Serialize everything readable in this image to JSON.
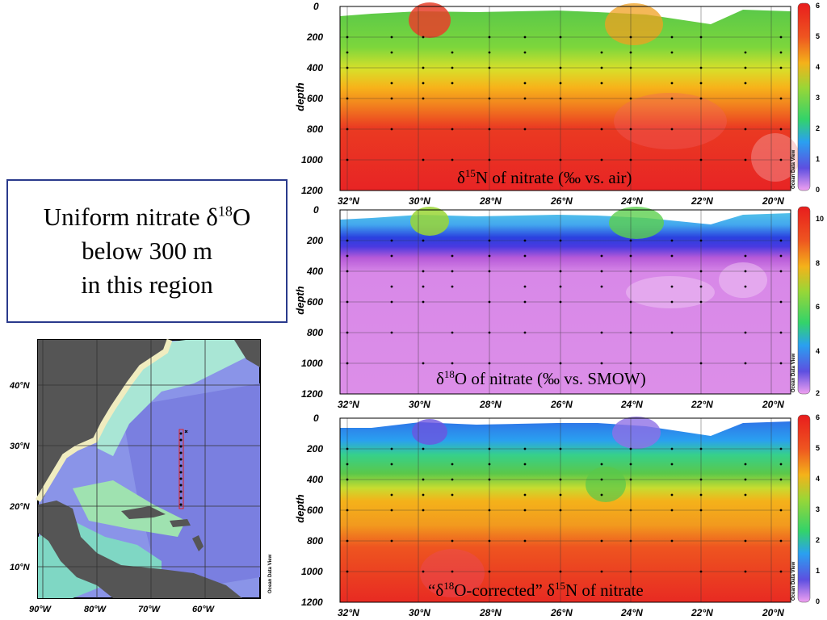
{
  "callout": {
    "line1_pre": "Uniform nitrate δ",
    "line1_sup": "18",
    "line1_post": "O",
    "line2": "below 300 m",
    "line3": "in this region"
  },
  "map": {
    "lat_labels": [
      "40°N",
      "30°N",
      "20°N",
      "10°N"
    ],
    "lon_labels": [
      "90°W",
      "80°W",
      "70°W",
      "60°W"
    ],
    "watermark": "Ocean Data View"
  },
  "chart_data": [
    {
      "type": "heatmap",
      "title_parts": {
        "pre": "δ",
        "sup": "15",
        "post": "N of nitrate (‰ vs. air)"
      },
      "ylabel": "depth",
      "x_ticks": [
        "32°N",
        "30°N",
        "28°N",
        "26°N",
        "24°N",
        "22°N",
        "20°N"
      ],
      "y_ticks": [
        "0",
        "200",
        "400",
        "600",
        "800",
        "1000",
        "1200"
      ],
      "ylim": [
        1200,
        0
      ],
      "colorbar": {
        "ticks": [
          "6",
          "5",
          "4",
          "3",
          "2",
          "1",
          "0"
        ],
        "range": [
          0,
          6
        ]
      },
      "watermark": "Ocean Data View",
      "grid": true
    },
    {
      "type": "heatmap",
      "title_parts": {
        "pre": "δ",
        "sup": "18",
        "post": "O of nitrate (‰ vs. SMOW)"
      },
      "ylabel": "depth",
      "x_ticks": [
        "32°N",
        "30°N",
        "28°N",
        "26°N",
        "24°N",
        "22°N",
        "20°N"
      ],
      "y_ticks": [
        "0",
        "200",
        "400",
        "600",
        "800",
        "1000",
        "1200"
      ],
      "ylim": [
        1200,
        0
      ],
      "colorbar": {
        "ticks": [
          "10",
          "8",
          "6",
          "4",
          "2"
        ],
        "range": [
          2,
          10.5
        ]
      },
      "watermark": "Ocean Data View",
      "grid": true
    },
    {
      "type": "heatmap",
      "title_parts": {
        "pre": "“δ",
        "sup": "18",
        "mid": "O-corrected” δ",
        "sup2": "15",
        "post": "N of nitrate"
      },
      "ylabel": "depth",
      "x_ticks": [
        "32°N",
        "30°N",
        "28°N",
        "26°N",
        "24°N",
        "22°N",
        "20°N"
      ],
      "y_ticks": [
        "0",
        "200",
        "400",
        "600",
        "800",
        "1000",
        "1200"
      ],
      "ylim": [
        1200,
        0
      ],
      "colorbar": {
        "ticks": [
          "6",
          "5",
          "4",
          "3",
          "2",
          "1",
          "0"
        ],
        "range": [
          0,
          6
        ]
      },
      "watermark": "Ocean Data View",
      "grid": true
    }
  ]
}
